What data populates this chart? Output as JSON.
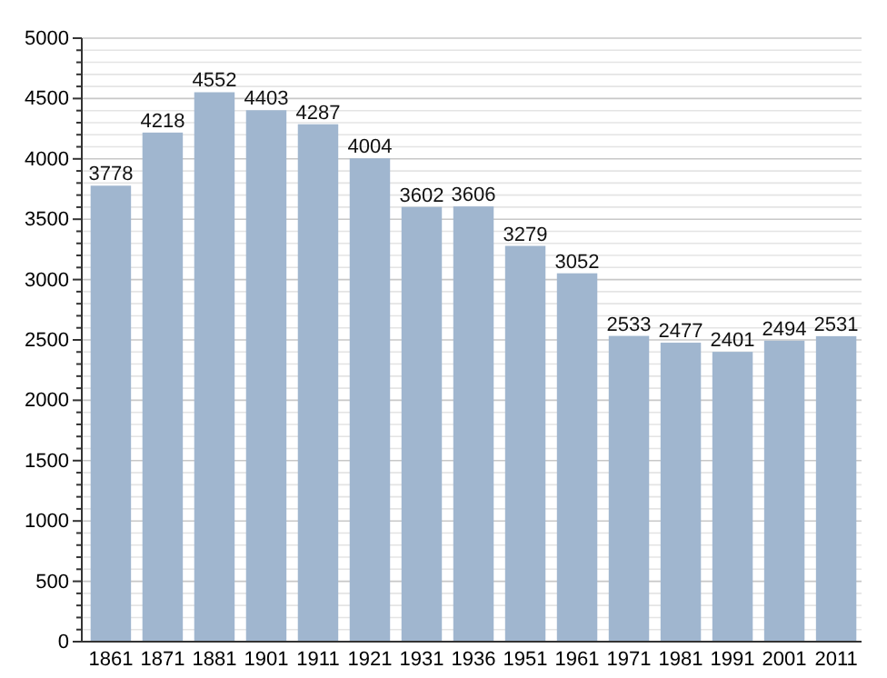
{
  "chart_data": {
    "type": "bar",
    "categories": [
      "1861",
      "1871",
      "1881",
      "1901",
      "1911",
      "1921",
      "1931",
      "1936",
      "1951",
      "1961",
      "1971",
      "1981",
      "1991",
      "2001",
      "2011"
    ],
    "values": [
      3778,
      4218,
      4552,
      4403,
      4287,
      4004,
      3602,
      3606,
      3279,
      3052,
      2533,
      2477,
      2401,
      2494,
      2531
    ],
    "color": "#a0b6cf",
    "data_labels": true,
    "grid": "y",
    "ylim": [
      0,
      5000
    ],
    "yticks": [
      0,
      {
        "value": 100,
        "label": null
      },
      {
        "value": 200,
        "label": null
      },
      {
        "value": 300,
        "label": null
      },
      {
        "value": 400,
        "label": null
      },
      500,
      {
        "value": 600,
        "label": null
      },
      {
        "value": 700,
        "label": null
      },
      {
        "value": 800,
        "label": null
      },
      {
        "value": 900,
        "label": null
      },
      1000,
      {
        "value": 1100,
        "label": null
      },
      {
        "value": 1200,
        "label": null
      },
      {
        "value": 1300,
        "label": null
      },
      {
        "value": 1400,
        "label": null
      },
      1500,
      {
        "value": 1600,
        "label": null
      },
      {
        "value": 1700,
        "label": null
      },
      {
        "value": 1800,
        "label": null
      },
      {
        "value": 1900,
        "label": null
      },
      2000,
      {
        "value": 2100,
        "label": null
      },
      {
        "value": 2200,
        "label": null
      },
      {
        "value": 2300,
        "label": null
      },
      {
        "value": 2400,
        "label": null
      },
      2500,
      {
        "value": 2600,
        "label": null
      },
      {
        "value": 2700,
        "label": null
      },
      {
        "value": 2800,
        "label": null
      },
      {
        "value": 2900,
        "label": null
      },
      3000,
      {
        "value": 3100,
        "label": null
      },
      {
        "value": 3200,
        "label": null
      },
      {
        "value": 3300,
        "label": null
      },
      {
        "value": 3400,
        "label": null
      },
      3500,
      {
        "value": 3600,
        "label": null
      },
      {
        "value": 3700,
        "label": null
      },
      {
        "value": 3800,
        "label": null
      },
      {
        "value": 3900,
        "label": null
      },
      4000,
      {
        "value": 4100,
        "label": null
      },
      {
        "value": 4200,
        "label": null
      },
      {
        "value": 4300,
        "label": null
      },
      {
        "value": 4400,
        "label": null
      },
      4500,
      {
        "value": 4600,
        "label": null
      },
      {
        "value": 4700,
        "label": null
      },
      {
        "value": 4800,
        "label": null
      },
      {
        "value": 4900,
        "label": null
      },
      5000
    ]
  }
}
